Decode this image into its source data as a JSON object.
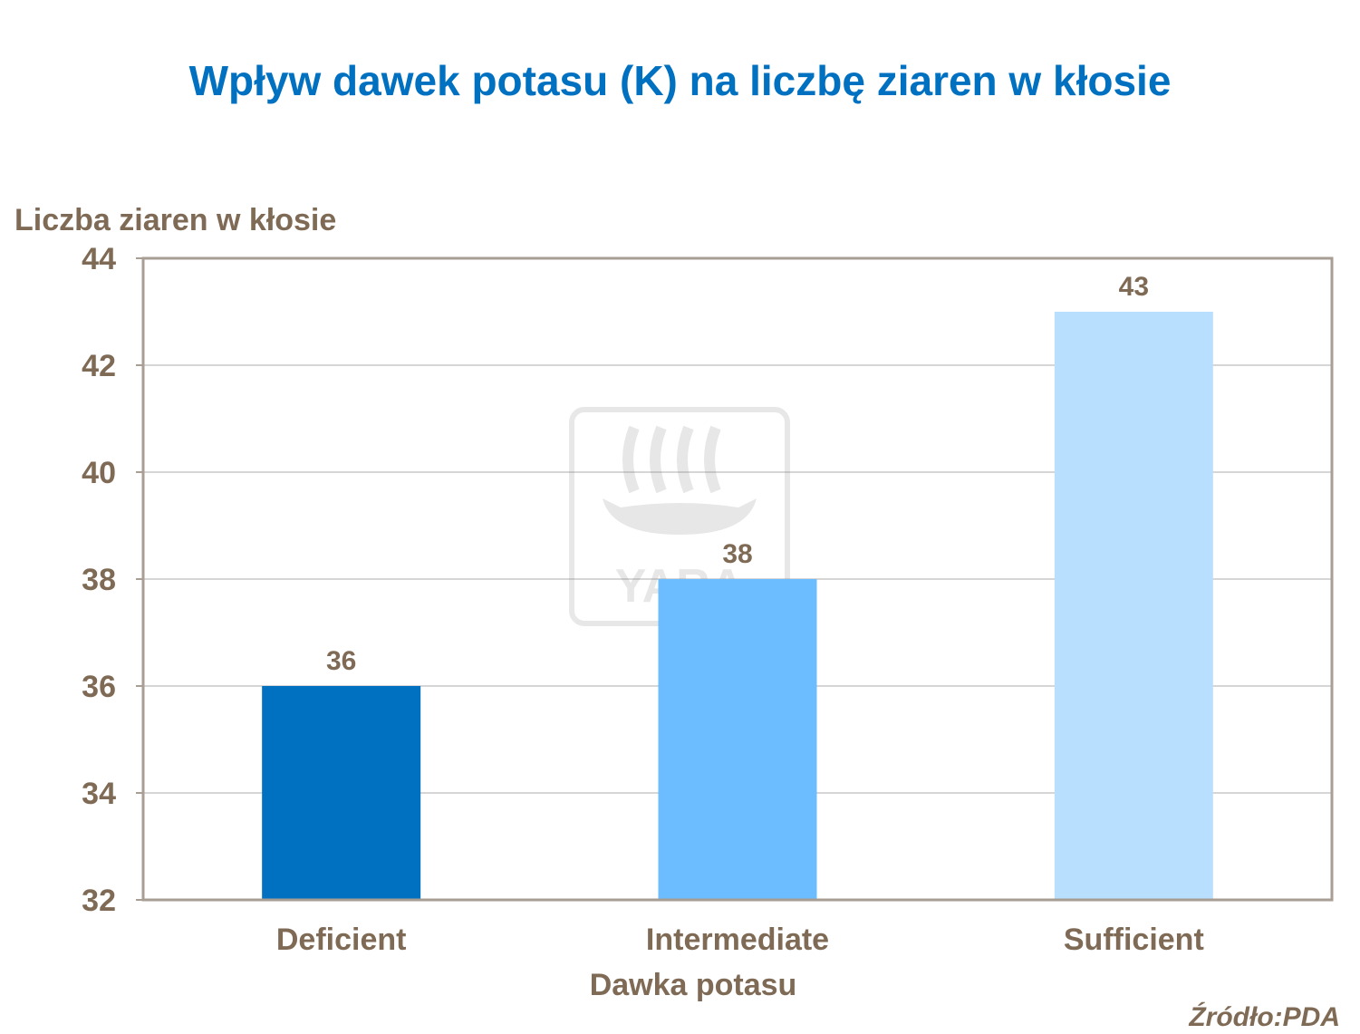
{
  "chart_data": {
    "type": "bar",
    "title": "Wpływ dawek potasu (K) na liczbę ziaren w kłosie",
    "ylabel": "Liczba ziaren w kłosie",
    "xlabel": "Dawka potasu",
    "categories": [
      "Deficient",
      "Intermediate",
      "Sufficient"
    ],
    "values": [
      36,
      38,
      43
    ],
    "data_labels": [
      "36",
      "38",
      "43"
    ],
    "bar_colors": [
      "#0070c0",
      "#6bbdff",
      "#b9dfff"
    ],
    "ylim": [
      32,
      44
    ],
    "yticks": [
      32,
      34,
      36,
      38,
      40,
      42,
      44
    ],
    "grid": true,
    "legend": "none"
  },
  "source": "Źródło:PDA",
  "watermark": {
    "text": "YARA",
    "icon": "yara-viking-ship-logo"
  },
  "colors": {
    "title": "#0070c0",
    "text": "#7f6a55",
    "axis": "#a89e94",
    "grid": "#c8c8c8"
  }
}
